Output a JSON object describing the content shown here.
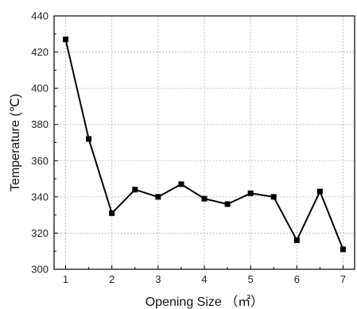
{
  "chart_data": {
    "type": "line",
    "title": "",
    "xlabel": "Opening Size （㎡）",
    "ylabel": "Temperature (℃)",
    "xlim": [
      0.75,
      7.25
    ],
    "ylim": [
      300,
      440
    ],
    "xticks": [
      1,
      2,
      3,
      4,
      5,
      6,
      7
    ],
    "yticks": [
      300,
      320,
      340,
      360,
      380,
      400,
      420,
      440
    ],
    "grid": true,
    "series": [
      {
        "marker": "square",
        "color": "#000000",
        "x": [
          1,
          1.5,
          2,
          2.5,
          3,
          3.5,
          4,
          4.5,
          5,
          5.5,
          6,
          6.5,
          7
        ],
        "y": [
          427,
          372,
          331,
          344,
          340,
          347,
          339,
          336,
          342,
          340,
          316,
          343,
          311
        ]
      }
    ]
  }
}
